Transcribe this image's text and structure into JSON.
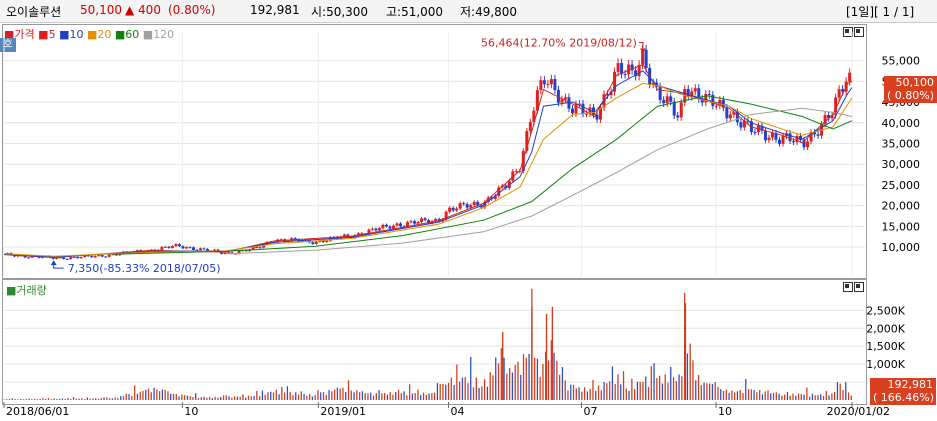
{
  "header": {
    "name": "오이솔루션",
    "price": "50,100",
    "change": "▲ 400",
    "change_pct": "(0.80%)",
    "volume": "192,981",
    "open": "시:50,300",
    "high": "고:51,000",
    "low": "저:49,800",
    "period": "[1일][ 1 / 1]"
  },
  "price_panel": {
    "legend": [
      {
        "label": "가격",
        "color": "#d82020"
      },
      {
        "label": "5",
        "color": "#d82020"
      },
      {
        "label": "10",
        "color": "#2040c0"
      },
      {
        "label": "20",
        "color": "#e09000"
      },
      {
        "label": "60",
        "color": "#108010"
      },
      {
        "label": "120",
        "color": "#a0a0a0"
      }
    ],
    "corner_tab": "호",
    "high_annotation": "56,464(12.70% 2019/08/12)",
    "low_annotation": "7,350(-85.33% 2018/07/05)",
    "last_price_tag": "50,100",
    "last_change_tag": "( 0.80%)"
  },
  "volume_panel": {
    "legend": "거래량",
    "last_volume_tag": "192,981",
    "last_change_tag": "( 166.46%)"
  },
  "chart_data": {
    "type": "line",
    "price_axis": {
      "ticks": [
        "55,000",
        "50,000",
        "45,000",
        "40,000",
        "35,000",
        "30,000",
        "25,000",
        "20,000",
        "15,000",
        "10,000"
      ],
      "ylim": [
        4000,
        59000
      ]
    },
    "volume_axis": {
      "ticks": [
        "2,500K",
        "2,000K",
        "1,500K",
        "1,000K",
        "500K"
      ],
      "ylim": [
        0,
        2900
      ]
    },
    "x_ticks": [
      "2018/06/01",
      "10",
      "2019/01",
      "04",
      "07",
      "10",
      "2020/01/02"
    ],
    "x_tick_dates": [
      "2018-06-01",
      "2018-10-01",
      "2019-01-02",
      "2019-04-01",
      "2019-07-01",
      "2019-10-01",
      "2020-01-02"
    ],
    "grid": true,
    "series": [
      {
        "name": "가격",
        "points": [
          [
            "2018-06-01",
            8200
          ],
          [
            "2018-07-05",
            7350
          ],
          [
            "2018-08-01",
            7700
          ],
          [
            "2018-09-10",
            9300
          ],
          [
            "2018-09-28",
            10300
          ],
          [
            "2018-10-31",
            8500
          ],
          [
            "2018-11-20",
            9600
          ],
          [
            "2018-12-03",
            11800
          ],
          [
            "2018-12-31",
            11300
          ],
          [
            "2019-01-25",
            12800
          ],
          [
            "2019-02-25",
            15500
          ],
          [
            "2019-03-25",
            16500
          ],
          [
            "2019-04-01",
            19000
          ],
          [
            "2019-04-25",
            20800
          ],
          [
            "2019-05-10",
            24500
          ],
          [
            "2019-05-20",
            30000
          ],
          [
            "2019-05-28",
            43000
          ],
          [
            "2019-06-05",
            50000
          ],
          [
            "2019-06-25",
            44000
          ],
          [
            "2019-07-10",
            41000
          ],
          [
            "2019-07-25",
            53000
          ],
          [
            "2019-08-05",
            51000
          ],
          [
            "2019-08-12",
            56464
          ],
          [
            "2019-08-22",
            47000
          ],
          [
            "2019-09-06",
            41000
          ],
          [
            "2019-09-10",
            49500
          ],
          [
            "2019-09-25",
            45000
          ],
          [
            "2019-10-10",
            43000
          ],
          [
            "2019-10-25",
            38000
          ],
          [
            "2019-11-15",
            36500
          ],
          [
            "2019-11-29",
            34700
          ],
          [
            "2019-12-10",
            39000
          ],
          [
            "2019-12-20",
            42500
          ],
          [
            "2019-12-30",
            51500
          ],
          [
            "2020-01-02",
            50100
          ]
        ]
      },
      {
        "name": "5",
        "points": [
          [
            "2018-06-01",
            8200
          ],
          [
            "2018-07-05",
            7500
          ],
          [
            "2018-09-10",
            9200
          ],
          [
            "2018-10-31",
            8800
          ],
          [
            "2018-12-03",
            11500
          ],
          [
            "2019-01-25",
            12600
          ],
          [
            "2019-03-25",
            16300
          ],
          [
            "2019-04-25",
            20600
          ],
          [
            "2019-05-20",
            28500
          ],
          [
            "2019-05-28",
            38000
          ],
          [
            "2019-06-05",
            48000
          ],
          [
            "2019-06-25",
            44500
          ],
          [
            "2019-07-10",
            41500
          ],
          [
            "2019-07-25",
            51500
          ],
          [
            "2019-08-12",
            54000
          ],
          [
            "2019-08-22",
            48000
          ],
          [
            "2019-09-10",
            47000
          ],
          [
            "2019-10-10",
            43500
          ],
          [
            "2019-10-25",
            39000
          ],
          [
            "2019-11-15",
            37000
          ],
          [
            "2019-11-29",
            35200
          ],
          [
            "2019-12-20",
            42000
          ],
          [
            "2019-12-30",
            49500
          ],
          [
            "2020-01-02",
            50000
          ]
        ]
      },
      {
        "name": "10",
        "points": [
          [
            "2018-06-01",
            8300
          ],
          [
            "2018-07-05",
            7600
          ],
          [
            "2018-09-10",
            9000
          ],
          [
            "2018-10-31",
            9000
          ],
          [
            "2018-12-03",
            11200
          ],
          [
            "2019-01-25",
            12400
          ],
          [
            "2019-03-25",
            16000
          ],
          [
            "2019-04-25",
            20200
          ],
          [
            "2019-05-20",
            27000
          ],
          [
            "2019-05-28",
            33000
          ],
          [
            "2019-06-05",
            44000
          ],
          [
            "2019-06-25",
            45000
          ],
          [
            "2019-07-10",
            42500
          ],
          [
            "2019-07-25",
            49000
          ],
          [
            "2019-08-12",
            52500
          ],
          [
            "2019-08-22",
            49000
          ],
          [
            "2019-09-10",
            47000
          ],
          [
            "2019-10-10",
            44000
          ],
          [
            "2019-10-25",
            40000
          ],
          [
            "2019-11-15",
            37500
          ],
          [
            "2019-11-29",
            36000
          ],
          [
            "2019-12-20",
            40500
          ],
          [
            "2019-12-30",
            47000
          ],
          [
            "2020-01-02",
            48500
          ]
        ]
      },
      {
        "name": "20",
        "points": [
          [
            "2018-06-01",
            8400
          ],
          [
            "2018-07-05",
            7800
          ],
          [
            "2018-09-10",
            8800
          ],
          [
            "2018-10-31",
            9100
          ],
          [
            "2018-12-03",
            10800
          ],
          [
            "2019-01-25",
            12100
          ],
          [
            "2019-03-25",
            15500
          ],
          [
            "2019-04-25",
            19500
          ],
          [
            "2019-05-20",
            24500
          ],
          [
            "2019-06-05",
            36000
          ],
          [
            "2019-06-25",
            42000
          ],
          [
            "2019-07-10",
            42500
          ],
          [
            "2019-07-25",
            46000
          ],
          [
            "2019-08-12",
            49500
          ],
          [
            "2019-08-22",
            49000
          ],
          [
            "2019-09-10",
            46500
          ],
          [
            "2019-10-10",
            44000
          ],
          [
            "2019-10-25",
            41000
          ],
          [
            "2019-11-15",
            38500
          ],
          [
            "2019-11-29",
            37000
          ],
          [
            "2019-12-20",
            39000
          ],
          [
            "2020-01-02",
            46000
          ]
        ]
      },
      {
        "name": "60",
        "points": [
          [
            "2018-08-15",
            8300
          ],
          [
            "2018-10-31",
            9000
          ],
          [
            "2018-12-31",
            10200
          ],
          [
            "2019-03-01",
            12800
          ],
          [
            "2019-04-25",
            16500
          ],
          [
            "2019-05-28",
            21000
          ],
          [
            "2019-06-25",
            29000
          ],
          [
            "2019-07-25",
            36000
          ],
          [
            "2019-08-22",
            44000
          ],
          [
            "2019-09-25",
            46500
          ],
          [
            "2019-10-25",
            44500
          ],
          [
            "2019-11-29",
            41500
          ],
          [
            "2019-12-20",
            38500
          ],
          [
            "2020-01-02",
            40500
          ]
        ]
      },
      {
        "name": "120",
        "points": [
          [
            "2018-11-01",
            8400
          ],
          [
            "2019-01-02",
            9300
          ],
          [
            "2019-03-01",
            11000
          ],
          [
            "2019-04-25",
            13700
          ],
          [
            "2019-05-28",
            17500
          ],
          [
            "2019-06-25",
            22500
          ],
          [
            "2019-07-25",
            28000
          ],
          [
            "2019-08-22",
            33500
          ],
          [
            "2019-09-25",
            38500
          ],
          [
            "2019-10-25",
            42000
          ],
          [
            "2019-11-29",
            43500
          ],
          [
            "2019-12-20",
            42500
          ],
          [
            "2020-01-02",
            41500
          ]
        ]
      }
    ],
    "volume_series": {
      "name": "거래량",
      "unit": "K",
      "points": [
        [
          "2018-06-01",
          40
        ],
        [
          "2018-08-15",
          90
        ],
        [
          "2018-09-12",
          560
        ],
        [
          "2018-09-28",
          250
        ],
        [
          "2018-10-15",
          120
        ],
        [
          "2018-11-20",
          200
        ],
        [
          "2018-12-03",
          450
        ],
        [
          "2018-12-31",
          220
        ],
        [
          "2019-01-15",
          560
        ],
        [
          "2019-02-10",
          300
        ],
        [
          "2019-03-01",
          380
        ],
        [
          "2019-03-20",
          300
        ],
        [
          "2019-04-05",
          1100
        ],
        [
          "2019-04-15",
          1050
        ],
        [
          "2019-04-22",
          600
        ],
        [
          "2019-05-08",
          1900
        ],
        [
          "2019-05-15",
          1300
        ],
        [
          "2019-05-28",
          2600
        ],
        [
          "2019-06-03",
          1300
        ],
        [
          "2019-06-07",
          2400
        ],
        [
          "2019-06-11",
          2600
        ],
        [
          "2019-06-17",
          1000
        ],
        [
          "2019-06-25",
          600
        ],
        [
          "2019-07-10",
          500
        ],
        [
          "2019-07-25",
          1200
        ],
        [
          "2019-08-01",
          500
        ],
        [
          "2019-08-12",
          1000
        ],
        [
          "2019-08-22",
          1100
        ],
        [
          "2019-09-06",
          1100
        ],
        [
          "2019-09-10",
          2700
        ],
        [
          "2019-09-20",
          900
        ],
        [
          "2019-10-10",
          400
        ],
        [
          "2019-10-25",
          500
        ],
        [
          "2019-11-15",
          250
        ],
        [
          "2019-11-29",
          300
        ],
        [
          "2019-12-10",
          250
        ],
        [
          "2019-12-20",
          300
        ],
        [
          "2019-12-26",
          800
        ],
        [
          "2020-01-02",
          193
        ]
      ]
    }
  }
}
